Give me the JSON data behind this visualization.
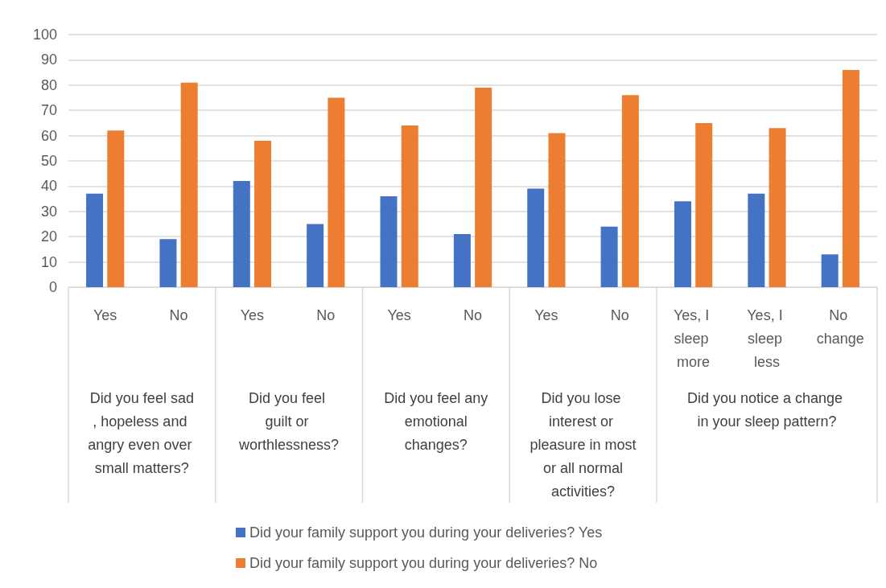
{
  "chart_data": {
    "type": "bar",
    "categories": [
      "Yes",
      "No",
      "Yes",
      "No",
      "Yes",
      "No",
      "Yes",
      "No",
      "Yes, I sleep more",
      "Yes, I sleep less",
      "No change"
    ],
    "series": [
      {
        "name": "Did your family support you during your deliveries? Yes",
        "color": "#4472c4",
        "values": [
          37,
          19,
          42,
          25,
          36,
          21,
          39,
          24,
          34,
          37,
          13
        ]
      },
      {
        "name": "Did your family support you during your deliveries? No",
        "color": "#ed7d31",
        "values": [
          62,
          81,
          58,
          75,
          64,
          79,
          61,
          76,
          65,
          63,
          86
        ]
      }
    ],
    "annotations": [
      "Did you feel sad, hopeless and angry even over small matters?",
      "Did you feel guilt or worthlessness?",
      "Did you feel any emotional changes?",
      "Did you lose interest or pleasure in most or all normal activities?",
      "Did you notice a change in your sleep pattern?"
    ],
    "ylim": [
      0,
      100
    ],
    "yticks": [
      0,
      10,
      20,
      30,
      40,
      50,
      60,
      70,
      80,
      90,
      100
    ],
    "grid": "y",
    "legend": "bottom"
  }
}
